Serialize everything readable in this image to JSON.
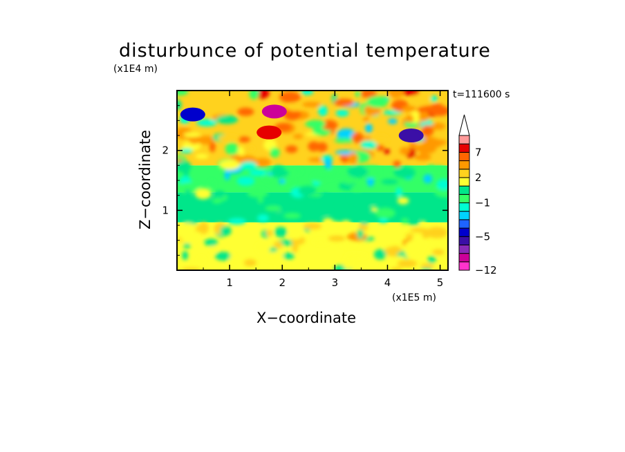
{
  "chart_data": {
    "type": "heatmap",
    "title": "disturbunce of potential temperature",
    "xlabel": "X−coordinate",
    "ylabel": "Z−coordinate",
    "x_unit": "(x1E5 m)",
    "y_unit": "(x1E4 m)",
    "time_label": "t=111600 s",
    "xlim": [
      0,
      5.15
    ],
    "ylim": [
      0,
      3.0
    ],
    "xticks": [
      {
        "value": 1,
        "label": "1"
      },
      {
        "value": 2,
        "label": "2"
      },
      {
        "value": 3,
        "label": "3"
      },
      {
        "value": 4,
        "label": "4"
      },
      {
        "value": 5,
        "label": "5"
      }
    ],
    "yticks": [
      {
        "value": 1,
        "label": "1"
      },
      {
        "value": 2,
        "label": "2"
      }
    ],
    "colorbar": {
      "levels": [
        -12,
        -10,
        -8,
        -6,
        -5,
        -4,
        -3,
        -2,
        -1,
        0,
        1,
        2,
        3,
        5,
        7,
        9,
        11
      ],
      "labels": [
        {
          "value": -12,
          "label": "−12"
        },
        {
          "value": -5,
          "label": "−5"
        },
        {
          "value": -1,
          "label": "−1"
        },
        {
          "value": 2,
          "label": "2"
        },
        {
          "value": 7,
          "label": "7"
        }
      ],
      "colors": [
        "#ff33cc",
        "#cc0099",
        "#8a2ab8",
        "#3b0fa6",
        "#0000cc",
        "#1e64ff",
        "#00d2ff",
        "#00ffd2",
        "#33ff66",
        "#00e68a",
        "#ffff33",
        "#ffd21e",
        "#ff9900",
        "#ff6600",
        "#e60000",
        "#ff9999"
      ],
      "extend": "max"
    },
    "bands": [
      {
        "z_range": [
          0.0,
          0.8
        ],
        "mean": 1.6,
        "desc": "lower warm layer"
      },
      {
        "z_range": [
          0.8,
          1.3
        ],
        "mean": 0.0,
        "desc": "neutral layer"
      },
      {
        "z_range": [
          1.3,
          1.75
        ],
        "mean": -0.8,
        "desc": "cool layer"
      },
      {
        "z_range": [
          1.75,
          3.0
        ],
        "mean": 2.5,
        "desc": "upper mixed warm/cool"
      }
    ],
    "features": [
      {
        "x": 1.85,
        "z": 2.65,
        "value": -9,
        "desc": "cold core"
      },
      {
        "x": 1.75,
        "z": 2.3,
        "value": 8,
        "desc": "warm core"
      },
      {
        "x": 4.45,
        "z": 2.25,
        "value": -6,
        "desc": "cold cell"
      },
      {
        "x": 0.3,
        "z": 2.6,
        "value": -5,
        "desc": "cold pool left"
      }
    ]
  }
}
